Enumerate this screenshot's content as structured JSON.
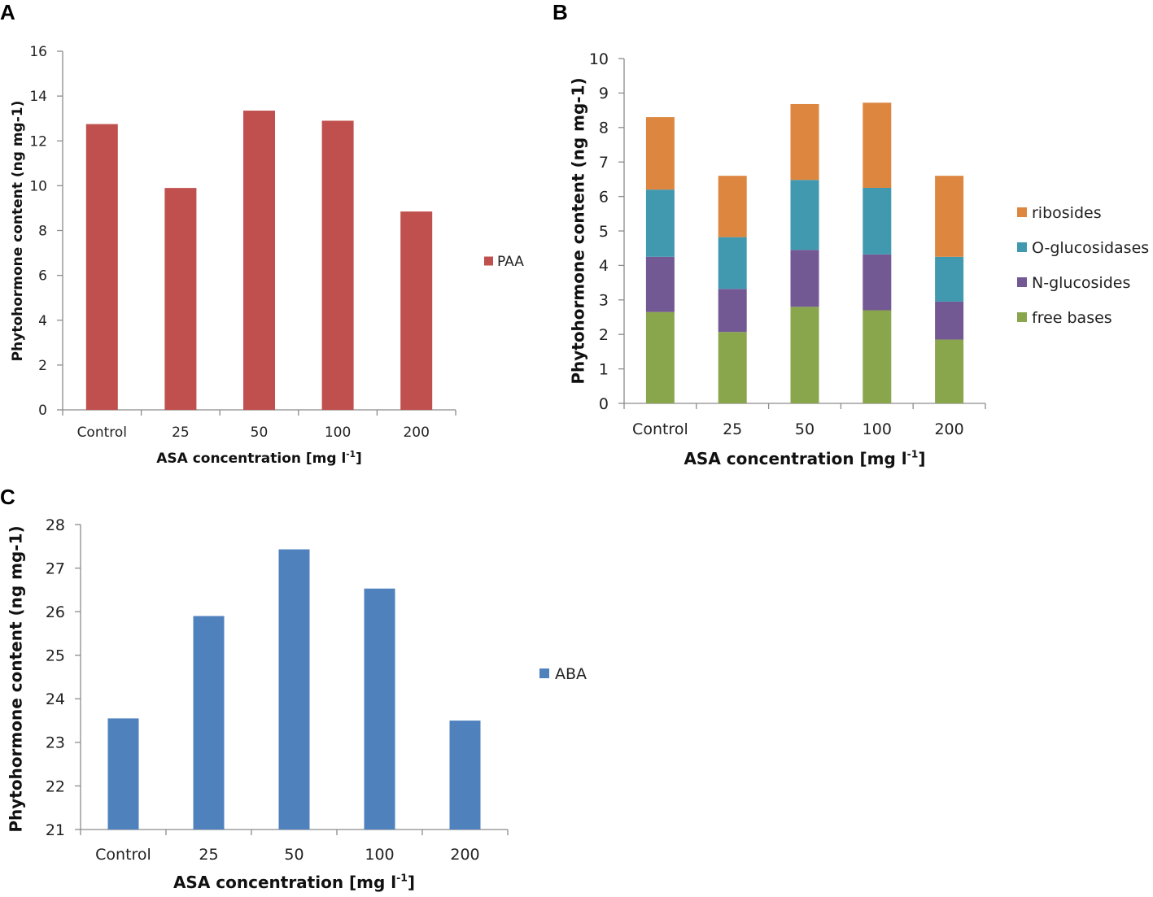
{
  "chart_data": [
    {
      "panel": "A",
      "type": "bar",
      "title": "",
      "categories": [
        "Control",
        "25",
        "50",
        "100",
        "200"
      ],
      "series": [
        {
          "name": "PAA",
          "color": "#c0504d",
          "values": [
            12.75,
            9.9,
            13.35,
            12.9,
            8.85
          ]
        }
      ],
      "ylim": [
        0,
        16
      ],
      "yticks": [
        "0",
        "2",
        "4",
        "6",
        "8",
        "10",
        "12",
        "14",
        "16"
      ],
      "xlabel": "ASA concentration [mg l",
      "xlabel_sup": "-1",
      "xlabel_end": "]",
      "ylabel": "Phytohormone content (ng mg-1)",
      "grid": false,
      "legend": "right"
    },
    {
      "panel": "B",
      "type": "bar",
      "stacked": true,
      "title": "",
      "categories": [
        "Control",
        "25",
        "50",
        "100",
        "200"
      ],
      "series": [
        {
          "name": "free bases",
          "color": "#8aa64c",
          "values": [
            2.65,
            2.07,
            2.8,
            2.7,
            1.85
          ]
        },
        {
          "name": "N-glucosides",
          "color": "#735993",
          "values": [
            1.6,
            1.25,
            1.65,
            1.62,
            1.1
          ]
        },
        {
          "name": "O-glucosidases",
          "color": "#4199b0",
          "values": [
            1.95,
            1.5,
            2.03,
            1.93,
            1.3
          ]
        },
        {
          "name": "ribosides",
          "color": "#dd8640",
          "values": [
            2.1,
            1.78,
            2.2,
            2.47,
            2.35
          ]
        }
      ],
      "ylim": [
        0,
        10
      ],
      "yticks": [
        "0",
        "1",
        "2",
        "3",
        "4",
        "5",
        "6",
        "7",
        "8",
        "9",
        "10"
      ],
      "xlabel": "ASA concentration [mg l",
      "xlabel_sup": "-1",
      "xlabel_end": "]",
      "ylabel": "Phytohormone content (ng mg-1)",
      "grid": false,
      "legend": "right"
    },
    {
      "panel": "C",
      "type": "bar",
      "title": "",
      "categories": [
        "Control",
        "25",
        "50",
        "100",
        "200"
      ],
      "series": [
        {
          "name": "ABA",
          "color": "#4f81bd",
          "values": [
            23.55,
            25.9,
            27.43,
            26.53,
            23.5
          ]
        }
      ],
      "ylim": [
        21,
        28
      ],
      "yticks": [
        "21",
        "22",
        "23",
        "24",
        "25",
        "26",
        "27",
        "28"
      ],
      "xlabel": "ASA concentration [mg l",
      "xlabel_sup": "-1",
      "xlabel_end": "]",
      "ylabel": "Phytohormone content (ng mg-1)",
      "grid": false,
      "legend": "right"
    }
  ]
}
